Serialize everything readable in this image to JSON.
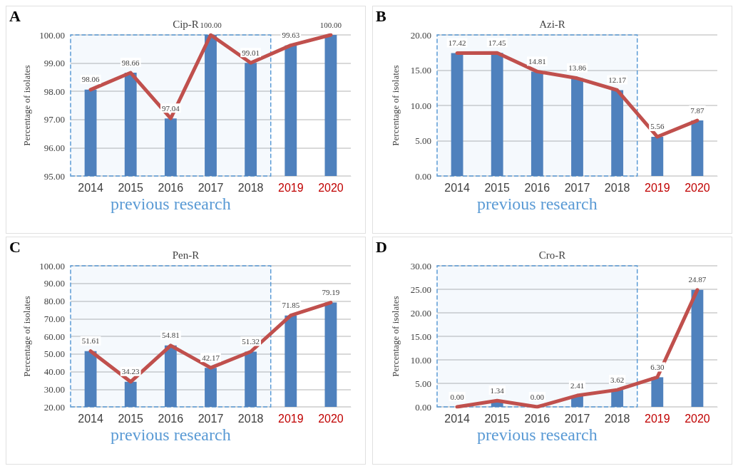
{
  "chart_data": [
    {
      "type": "bar",
      "title": "Cip-R",
      "ylabel": "Percentage of isolates",
      "annotations": [
        "A"
      ],
      "categories": [
        "2014",
        "2015",
        "2016",
        "2017",
        "2018",
        "2019",
        "2020"
      ],
      "series": [
        {
          "color": "#4f81bd",
          "values": [
            98.06,
            98.66,
            97.04,
            100,
            99.01,
            99.63,
            100
          ]
        },
        {
          "type": "line",
          "color": "#c0504d",
          "values": [
            98.06,
            98.66,
            97.04,
            100,
            99.01,
            99.63,
            100
          ],
          "value_labels": [
            "98.06",
            "98.66",
            "97.04",
            "100.00",
            "99.01",
            "99.63",
            "100.00"
          ]
        }
      ],
      "ylim": [
        95,
        100
      ],
      "yticks": [
        {
          "value": 95,
          "label": "95.00"
        },
        {
          "value": 96,
          "label": "96.00"
        },
        {
          "value": 97,
          "label": "97.00"
        },
        {
          "value": 98,
          "label": "98.00"
        },
        {
          "value": 99,
          "label": "99.00"
        },
        {
          "value": 100,
          "label": "100.00"
        }
      ],
      "grid": "y",
      "marker": "none",
      "bands": [
        {
          "axis": "x",
          "from": "2014",
          "to": "2018",
          "label": "previous research",
          "color": "#5b9bd5"
        }
      ]
    },
    {
      "type": "bar",
      "title": "Azi-R",
      "ylabel": "Percentage of isolates",
      "annotations": [
        "B"
      ],
      "categories": [
        "2014",
        "2015",
        "2016",
        "2017",
        "2018",
        "2019",
        "2020"
      ],
      "series": [
        {
          "color": "#4f81bd",
          "values": [
            17.42,
            17.45,
            14.81,
            13.86,
            12.17,
            5.56,
            7.87
          ]
        },
        {
          "type": "line",
          "color": "#c0504d",
          "values": [
            17.42,
            17.45,
            14.81,
            13.86,
            12.17,
            5.56,
            7.87
          ],
          "value_labels": [
            "17.42",
            "17.45",
            "14.81",
            "13.86",
            "12.17",
            "5.56",
            "7.87"
          ]
        }
      ],
      "ylim": [
        0,
        20
      ],
      "yticks": [
        {
          "value": 0,
          "label": "0.00"
        },
        {
          "value": 5,
          "label": "5.00"
        },
        {
          "value": 10,
          "label": "10.00"
        },
        {
          "value": 15,
          "label": "15.00"
        },
        {
          "value": 20,
          "label": "20.00"
        }
      ],
      "grid": "y",
      "marker": "none",
      "bands": [
        {
          "axis": "x",
          "from": "2014",
          "to": "2018",
          "label": "previous research",
          "color": "#5b9bd5"
        }
      ]
    },
    {
      "type": "bar",
      "title": "Pen-R",
      "ylabel": "Percentage of isolates",
      "annotations": [
        "C"
      ],
      "categories": [
        "2014",
        "2015",
        "2016",
        "2017",
        "2018",
        "2019",
        "2020"
      ],
      "series": [
        {
          "color": "#4f81bd",
          "values": [
            51.61,
            34.23,
            54.81,
            42.17,
            51.32,
            71.85,
            79.19
          ]
        },
        {
          "type": "line",
          "color": "#c0504d",
          "values": [
            51.61,
            34.23,
            54.81,
            42.17,
            51.32,
            71.85,
            79.19
          ],
          "value_labels": [
            "51.61",
            "34.23",
            "54.81",
            "42.17",
            "51.32",
            "71.85",
            "79.19"
          ]
        }
      ],
      "ylim": [
        20,
        100
      ],
      "yticks": [
        {
          "value": 20,
          "label": "20.00"
        },
        {
          "value": 30,
          "label": "30.00"
        },
        {
          "value": 40,
          "label": "40.00"
        },
        {
          "value": 50,
          "label": "50.00"
        },
        {
          "value": 60,
          "label": "60.00"
        },
        {
          "value": 70,
          "label": "70.00"
        },
        {
          "value": 80,
          "label": "80.00"
        },
        {
          "value": 90,
          "label": "90.00"
        },
        {
          "value": 100,
          "label": "100.00"
        }
      ],
      "grid": "y",
      "marker": "none",
      "bands": [
        {
          "axis": "x",
          "from": "2014",
          "to": "2018",
          "label": "previous research",
          "color": "#5b9bd5"
        }
      ]
    },
    {
      "type": "bar",
      "title": "Cro-R",
      "ylabel": "Percentage of isolates",
      "annotations": [
        "D"
      ],
      "categories": [
        "2014",
        "2015",
        "2016",
        "2017",
        "2018",
        "2019",
        "2020"
      ],
      "series": [
        {
          "color": "#4f81bd",
          "values": [
            0,
            1.34,
            0,
            2.41,
            3.62,
            6.3,
            24.87
          ]
        },
        {
          "type": "line",
          "color": "#c0504d",
          "values": [
            0,
            1.34,
            0,
            2.41,
            3.62,
            6.3,
            24.87
          ],
          "value_labels": [
            "0.00",
            "1.34",
            "0.00",
            "2.41",
            "3.62",
            "6.30",
            "24.87"
          ]
        }
      ],
      "ylim": [
        0,
        30
      ],
      "yticks": [
        {
          "value": 0,
          "label": "0.00"
        },
        {
          "value": 5,
          "label": "5.00"
        },
        {
          "value": 10,
          "label": "10.00"
        },
        {
          "value": 15,
          "label": "15.00"
        },
        {
          "value": 20,
          "label": "20.00"
        },
        {
          "value": 25,
          "label": "25.00"
        },
        {
          "value": 30,
          "label": "30.00"
        }
      ],
      "grid": "y",
      "marker": "none",
      "bands": [
        {
          "axis": "x",
          "from": "2014",
          "to": "2018",
          "label": "previous research",
          "color": "#5b9bd5"
        }
      ]
    }
  ]
}
